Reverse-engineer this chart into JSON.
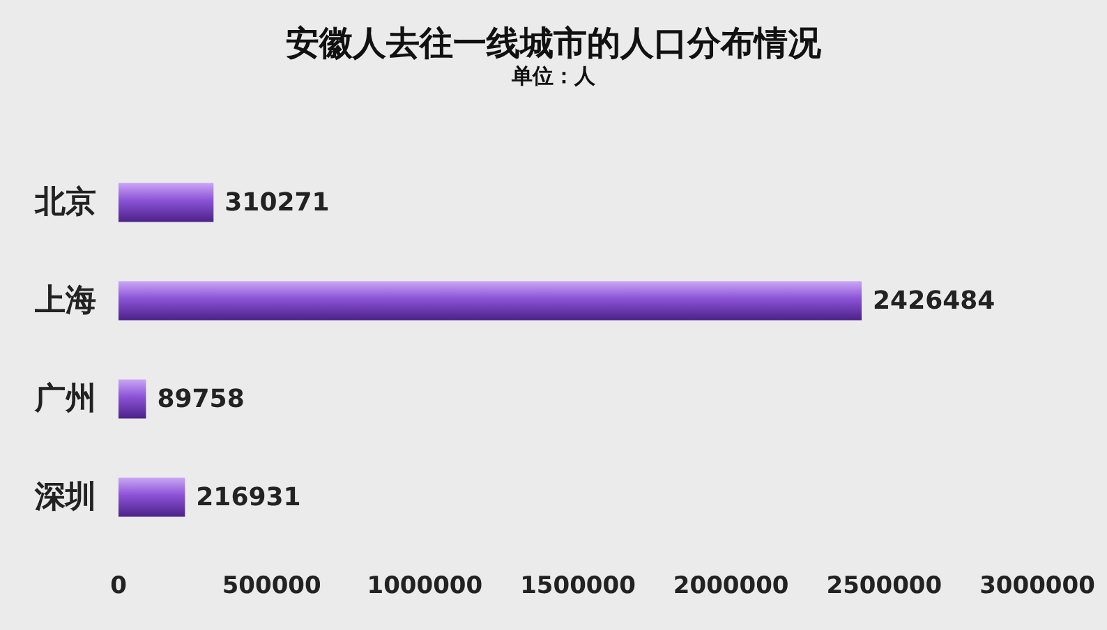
{
  "chart_data": {
    "type": "bar",
    "title": "安徽人去往一线城市的人口分布情况",
    "subtitle": "单位：人",
    "orientation": "horizontal",
    "categories": [
      "北京",
      "上海",
      "广州",
      "深圳"
    ],
    "values": [
      310271,
      2426484,
      89758,
      216931
    ],
    "color": "#8b52d6",
    "xlim": [
      0,
      3000000
    ],
    "xticks": [
      0,
      500000,
      1000000,
      1500000,
      2000000,
      2500000,
      3000000
    ],
    "data_labels": true,
    "grid": false
  }
}
